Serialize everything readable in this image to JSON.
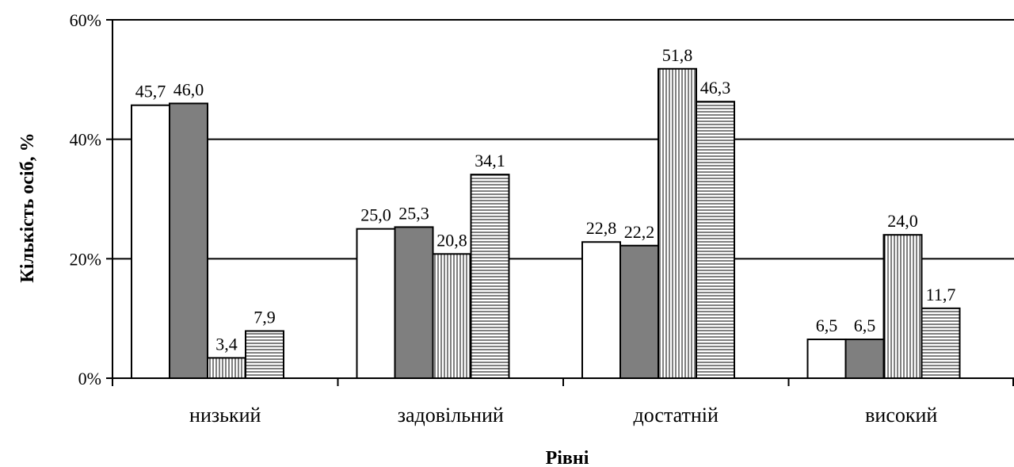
{
  "chart_data": {
    "type": "bar",
    "categories": [
      "низький",
      "задовільний",
      "достатній",
      "високий"
    ],
    "series": [
      {
        "values": [
          45.7,
          25.0,
          22.8,
          6.5
        ],
        "fill": "white",
        "value_labels": [
          "45,7",
          "25,0",
          "22,8",
          "6,5"
        ]
      },
      {
        "values": [
          46.0,
          25.3,
          22.2,
          6.5
        ],
        "fill": "gray",
        "value_labels": [
          "46,0",
          "25,3",
          "22,2",
          "6,5"
        ]
      },
      {
        "values": [
          3.4,
          20.8,
          51.8,
          24.0
        ],
        "fill": "vertical-hatch",
        "value_labels": [
          "3,4",
          "20,8",
          "51,8",
          "24,0"
        ]
      },
      {
        "values": [
          7.9,
          34.1,
          46.3,
          11.7
        ],
        "fill": "horizontal-hatch",
        "value_labels": [
          "7,9",
          "34,1",
          "46,3",
          "11,7"
        ]
      }
    ],
    "xlabel": "Рівні",
    "ylabel": "Кількість осіб, %",
    "ylim": [
      0,
      60
    ],
    "yticks": [
      0,
      20,
      40,
      60
    ],
    "ytick_labels": [
      "0%",
      "20%",
      "40%",
      "60%"
    ],
    "grid": true,
    "colors": {
      "gray": "#7f7f7f",
      "outline": "#000000",
      "background": "#ffffff"
    }
  }
}
